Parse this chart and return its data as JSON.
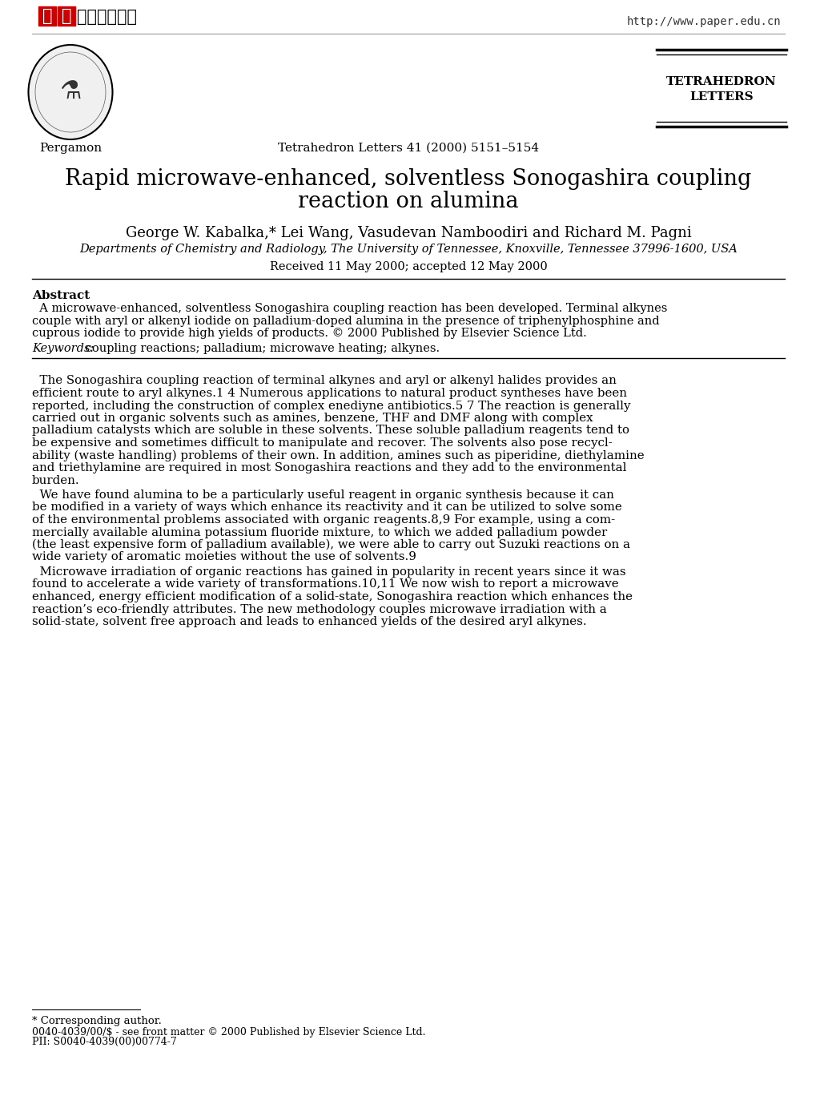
{
  "bg_color": "#ffffff",
  "chinese_part1": "中国",
  "chinese_part2": "科技论文在线",
  "url": "http://www.paper.edu.cn",
  "journal_name_line1": "TETRAHEDRON",
  "journal_name_line2": "LETTERS",
  "journal_ref": "Tetrahedron Letters 41 (2000) 5151–5154",
  "publisher": "Pergamon",
  "title_line1": "Rapid microwave-enhanced, solventless Sonogashira coupling",
  "title_line2": "reaction on alumina",
  "authors": "George W. Kabalka,* Lei Wang, Vasudevan Namboodiri and Richard M. Pagni",
  "affiliation": "Departments of Chemistry and Radiology, The University of Tennessee, Knoxville, Tennessee 37996-1600, USA",
  "received": "Received 11 May 2000; accepted 12 May 2000",
  "abstract_label": "Abstract",
  "abstract_lines": [
    "  A microwave-enhanced, solventless Sonogashira coupling reaction has been developed. Terminal alkynes",
    "couple with aryl or alkenyl iodide on palladium-doped alumina in the presence of triphenylphosphine and",
    "cuprous iodide to provide high yields of products. © 2000 Published by Elsevier Science Ltd."
  ],
  "keywords_italic": "Keywords:",
  "keywords_rest": " coupling reactions; palladium; microwave heating; alkynes.",
  "body_para1": [
    "  The Sonogashira coupling reaction of terminal alkynes and aryl or alkenyl halides provides an",
    "efficient route to aryl alkynes.1 4 Numerous applications to natural product syntheses have been",
    "reported, including the construction of complex enediyne antibiotics.5 7 The reaction is generally",
    "carried out in organic solvents such as amines, benzene, THF and DMF along with complex",
    "palladium catalysts which are soluble in these solvents. These soluble palladium reagents tend to",
    "be expensive and sometimes difficult to manipulate and recover. The solvents also pose recycl-",
    "ability (waste handling) problems of their own. In addition, amines such as piperidine, diethylamine",
    "and triethylamine are required in most Sonogashira reactions and they add to the environmental",
    "burden."
  ],
  "body_para2": [
    "  We have found alumina to be a particularly useful reagent in organic synthesis because it can",
    "be modified in a variety of ways which enhance its reactivity and it can be utilized to solve some",
    "of the environmental problems associated with organic reagents.8,9 For example, using a com-",
    "mercially available alumina potassium fluoride mixture, to which we added palladium powder",
    "(the least expensive form of palladium available), we were able to carry out Suzuki reactions on a",
    "wide variety of aromatic moieties without the use of solvents.9"
  ],
  "body_para3": [
    "  Microwave irradiation of organic reactions has gained in popularity in recent years since it was",
    "found to accelerate a wide variety of transformations.10,11 We now wish to report a microwave",
    "enhanced, energy efficient modification of a solid-state, Sonogashira reaction which enhances the",
    "reaction’s eco-friendly attributes. The new methodology couples microwave irradiation with a",
    "solid-state, solvent free approach and leads to enhanced yields of the desired aryl alkynes."
  ],
  "footnote1": "* Corresponding author.",
  "footnote2": "0040-4039/00/$ - see front matter © 2000 Published by Elsevier Science Ltd.",
  "footnote3": "PII: S0040-4039(00)00774-7"
}
